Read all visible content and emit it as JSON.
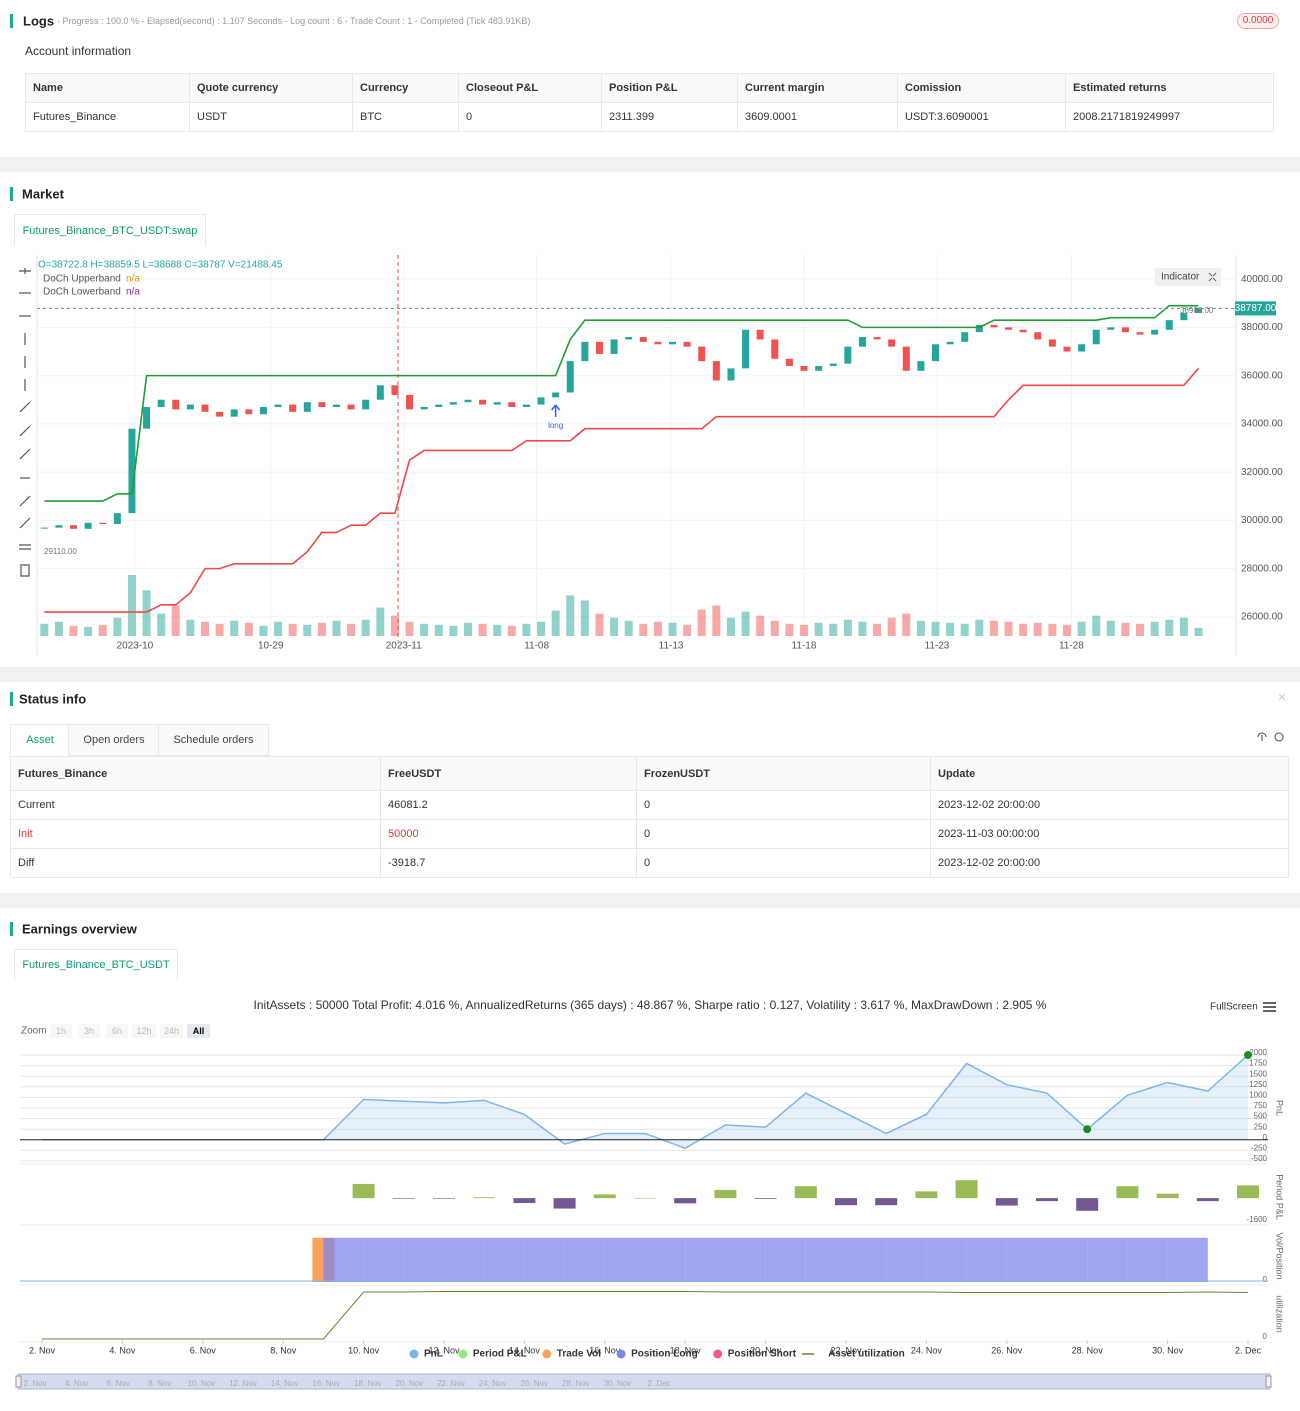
{
  "logs": {
    "title": "Logs",
    "status": "- Progress : 100.0 % - Elapsed(second) : 1.107 Seconds - Log count : 6 - Trade Count : 1 - Completed (Tick 483.91KB)",
    "badge": "0.0000",
    "account_title": "Account information",
    "table": {
      "headers": [
        "Name",
        "Quote currency",
        "Currency",
        "Closeout P&L",
        "Position P&L",
        "Current margin",
        "Comission",
        "Estimated returns"
      ],
      "rows": [
        [
          "Futures_Binance",
          "USDT",
          "BTC",
          0,
          2311.399,
          3609.0001,
          "USDT:3.6090001",
          "2008.2171819249997"
        ]
      ]
    }
  },
  "market": {
    "title": "Market",
    "tab": "Futures_Binance_BTC_USDT:swap"
  },
  "status": {
    "title": "Status info",
    "tabs": [
      "Asset",
      "Open orders",
      "Schedule orders"
    ],
    "table": {
      "headers": [
        "Futures_Binance",
        "FreeUSDT",
        "FrozenUSDT",
        "Update"
      ],
      "rows": [
        [
          "Current",
          46081.2,
          0,
          "2023-12-02 20:00:00"
        ],
        [
          "Init",
          50000,
          0,
          "2023-11-03 00:00:00"
        ],
        [
          "Diff",
          -3918.7,
          0,
          "2023-12-02 20:00:00"
        ]
      ]
    }
  },
  "earnings": {
    "title": "Earnings overview",
    "tab": "Futures_Binance_BTC_USDT",
    "fullscreen": "FullScreen",
    "zoom_label": "Zoom",
    "zoom_buttons": [
      "1h",
      "3h",
      "6h",
      "12h",
      "24h",
      "All"
    ]
  },
  "chart_data": [
    {
      "type": "candlestick",
      "ohlc_legend": "O=38722.8 H=38859.5 L=38688 C=38787 V=21488.45",
      "up_color": "#26a69a",
      "down_color": "#ef5350",
      "close": [
        29700,
        29800,
        29650,
        29900,
        29850,
        30300,
        33800,
        34700,
        35000,
        34600,
        34800,
        34500,
        34300,
        34600,
        34400,
        34700,
        34800,
        34500,
        34900,
        34700,
        34800,
        34600,
        35000,
        35600,
        35200,
        34600,
        34700,
        34800,
        34900,
        35000,
        34800,
        34900,
        34700,
        34800,
        35100,
        35300,
        36600,
        37400,
        36900,
        37500,
        37600,
        37400,
        37300,
        37400,
        37200,
        36600,
        35800,
        36300,
        37900,
        37500,
        36700,
        36400,
        36200,
        36400,
        36500,
        37200,
        37600,
        37500,
        37200,
        36200,
        36600,
        37300,
        37400,
        37800,
        38100,
        38000,
        37900,
        37800,
        37500,
        37200,
        37000,
        37300,
        37900,
        38000,
        37800,
        37700,
        37900,
        38300,
        38600,
        38787
      ],
      "volume": [
        12,
        14,
        10,
        9,
        11,
        18,
        60,
        45,
        22,
        30,
        16,
        14,
        12,
        15,
        13,
        10,
        14,
        12,
        11,
        13,
        15,
        12,
        16,
        28,
        20,
        14,
        12,
        11,
        10,
        13,
        12,
        11,
        10,
        12,
        14,
        25,
        40,
        35,
        22,
        18,
        15,
        12,
        14,
        13,
        11,
        26,
        30,
        18,
        24,
        20,
        15,
        12,
        11,
        13,
        12,
        16,
        14,
        12,
        18,
        22,
        15,
        14,
        13,
        12,
        16,
        15,
        14,
        12,
        13,
        12,
        11,
        14,
        20,
        15,
        13,
        12,
        14,
        16,
        18,
        8
      ],
      "series": [
        {
          "name": "DoCh Upperband",
          "legend_value": "n/a",
          "legend_value_color": "#ff9800",
          "color": "#1e9e34",
          "values": [
            30800,
            30800,
            30800,
            30800,
            30800,
            31100,
            31100,
            36000,
            36000,
            36000,
            36000,
            36000,
            36000,
            36000,
            36000,
            36000,
            36000,
            36000,
            36000,
            36000,
            36000,
            36000,
            36000,
            36000,
            36000,
            36000,
            36000,
            36000,
            36000,
            36000,
            36000,
            36000,
            36000,
            36000,
            36000,
            36000,
            37500,
            38300,
            38300,
            38300,
            38300,
            38300,
            38300,
            38300,
            38300,
            38300,
            38300,
            38300,
            38300,
            38300,
            38300,
            38300,
            38300,
            38300,
            38300,
            38300,
            38000,
            38000,
            38000,
            38000,
            38000,
            38000,
            38000,
            38000,
            38000,
            38300,
            38300,
            38300,
            38300,
            38300,
            38300,
            38300,
            38300,
            38400,
            38400,
            38400,
            38400,
            38900,
            38900,
            38900
          ]
        },
        {
          "name": "DoCh Lowerband",
          "legend_value": "n/a",
          "legend_value_color": "#9c27b0",
          "color": "#f04747",
          "values": [
            26200,
            26200,
            26200,
            26200,
            26200,
            26200,
            26200,
            26200,
            26500,
            26500,
            27000,
            28000,
            28000,
            28200,
            28200,
            28200,
            28200,
            28200,
            28700,
            29500,
            29500,
            29800,
            29800,
            30300,
            30300,
            32500,
            32900,
            32900,
            32900,
            32900,
            32900,
            32900,
            32900,
            33300,
            33300,
            33300,
            33300,
            33800,
            33800,
            33800,
            33800,
            33800,
            33800,
            33800,
            33800,
            33800,
            34300,
            34300,
            34300,
            34300,
            34300,
            34300,
            34300,
            34300,
            34300,
            34300,
            34300,
            34300,
            34300,
            34300,
            34300,
            34300,
            34300,
            34300,
            34300,
            34300,
            35000,
            35600,
            35600,
            35600,
            35600,
            35600,
            35600,
            35600,
            35600,
            35600,
            35600,
            35600,
            35600,
            36300
          ]
        }
      ],
      "xlim": [
        0,
        82
      ],
      "xticks": [
        {
          "value": 6.7,
          "label": "2023-10"
        },
        {
          "value": 16,
          "label": "10-29"
        },
        {
          "value": 25.1,
          "label": "2023-11"
        },
        {
          "value": 34.2,
          "label": "11-08"
        },
        {
          "value": 43.4,
          "label": "11-13"
        },
        {
          "value": 52.5,
          "label": "11-18"
        },
        {
          "value": 61.6,
          "label": "11-23"
        },
        {
          "value": 70.8,
          "label": "11-28"
        }
      ],
      "ylim": [
        25000,
        41000
      ],
      "yticks": [
        {
          "value": 26000,
          "label": "26000.00"
        },
        {
          "value": 28000,
          "label": "28000.00"
        },
        {
          "value": 30000,
          "label": "30000.00"
        },
        {
          "value": 32000,
          "label": "32000.00"
        },
        {
          "value": 34000,
          "label": "34000.00"
        },
        {
          "value": 36000,
          "label": "36000.00"
        },
        {
          "value": 38000,
          "label": "38000.00"
        },
        {
          "value": 40000,
          "label": "40000.00"
        }
      ],
      "grid": true,
      "last_price_label": "38787.00",
      "high_label": "38989.00",
      "low_label": "29110.00",
      "annotation": "long",
      "indicator_button": "Indicator"
    },
    {
      "type": "line",
      "title": "InitAssets : 50000 Total Profit: 4.016 %, AnnualizedReturns (365 days) : 48.867 %, Sharpe ratio : 0.127, Volatility : 3.617 %, MaxDrawDown : 2.905 %",
      "categories": [
        "2. Nov",
        null,
        "4. Nov",
        null,
        "6. Nov",
        null,
        "8. Nov",
        null,
        "10. Nov",
        null,
        "12. Nov",
        null,
        "14. Nov",
        null,
        "16. Nov",
        null,
        "18. Nov",
        null,
        "20. Nov",
        null,
        "22. Nov",
        null,
        "24. Nov",
        null,
        "26. Nov",
        null,
        "28. Nov",
        null,
        "30. Nov",
        null,
        "2. Dec"
      ],
      "series": [
        {
          "name": "PnL",
          "type": "area",
          "axis": "y",
          "color": "#7cb5ec",
          "values": [
            0,
            0,
            0,
            0,
            0,
            0,
            0,
            0,
            950,
            910,
            870,
            930,
            600,
            -100,
            150,
            150,
            -200,
            350,
            300,
            1100,
            625,
            150,
            600,
            1800,
            1300,
            1100,
            250,
            1050,
            1350,
            1150,
            2000
          ]
        },
        {
          "name": "Period P&L",
          "type": "column",
          "axis": "y2",
          "color": "#90ed7d",
          "positive_color": "#9bbb59",
          "negative_color": "#735893",
          "values": [
            null,
            null,
            null,
            null,
            null,
            null,
            null,
            null,
            950,
            -40,
            -40,
            60,
            -330,
            -700,
            250,
            0,
            -350,
            550,
            -50,
            800,
            -475,
            -475,
            450,
            1200,
            -500,
            -200,
            -850,
            800,
            300,
            -200,
            850
          ]
        },
        {
          "name": "Trade Vol",
          "type": "column",
          "axis": "y3",
          "color": "#f7a35c",
          "values": [
            null,
            null,
            null,
            null,
            null,
            null,
            null,
            0.85,
            null,
            null,
            null,
            null,
            null,
            null,
            null,
            null,
            null,
            null,
            null,
            null,
            null,
            null,
            null,
            null,
            null,
            null,
            null,
            null,
            null,
            null,
            null
          ]
        },
        {
          "name": "Position Long",
          "type": "step",
          "axis": "y3",
          "color": "#8085e9",
          "values": [
            null,
            null,
            null,
            null,
            null,
            null,
            null,
            0.85,
            0.85,
            0.85,
            0.85,
            0.85,
            0.85,
            0.85,
            0.85,
            0.85,
            0.85,
            0.85,
            0.85,
            0.85,
            0.85,
            0.85,
            0.85,
            0.85,
            0.85,
            0.85,
            0.85,
            0.85,
            0.85,
            null,
            null
          ]
        },
        {
          "name": "Position Short",
          "type": "step",
          "axis": "y3",
          "color": "#f15c80",
          "values": [
            null,
            null,
            null,
            null,
            null,
            null,
            null,
            null,
            null,
            null,
            null,
            null,
            null,
            null,
            null,
            null,
            null,
            null,
            null,
            null,
            null,
            null,
            null,
            null,
            null,
            null,
            null,
            null,
            null,
            null,
            null
          ]
        },
        {
          "name": "Asset utilization",
          "type": "line",
          "axis": "y4",
          "color": "#7a7a2e",
          "values": [
            0,
            0,
            0,
            0,
            0,
            0,
            0,
            0,
            0.94,
            0.94,
            0.95,
            0.95,
            0.95,
            0.95,
            0.95,
            0.95,
            0.95,
            0.94,
            0.94,
            0.94,
            0.94,
            0.94,
            0.94,
            0.93,
            0.93,
            0.93,
            0.93,
            0.93,
            0.93,
            0.94,
            0.93
          ]
        }
      ],
      "ylim": [
        -500,
        2000
      ],
      "yticks": [
        -500,
        -250,
        0,
        250,
        500,
        750,
        1000,
        1250,
        1500,
        1750,
        2000
      ],
      "ylabel": "PnL",
      "y2lim": [
        -1600,
        1750
      ],
      "y2ticks": [
        -1600
      ],
      "y2label": "Period P&L",
      "y3lim": [
        0,
        1
      ],
      "y3ticks": [
        0
      ],
      "y3label": "Vol/Position",
      "y4lim": [
        0,
        1
      ],
      "y4ticks": [
        0
      ],
      "y4label": "utilization"
    }
  ]
}
